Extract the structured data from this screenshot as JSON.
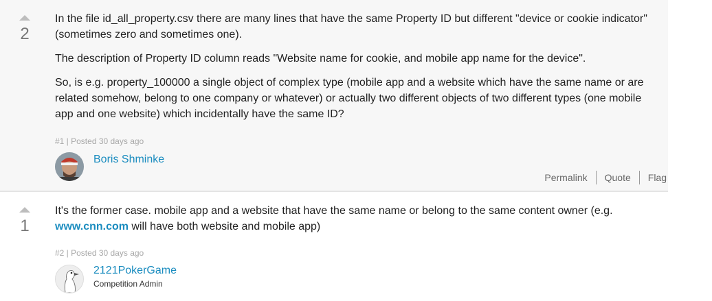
{
  "posts": [
    {
      "votes": "2",
      "paragraphs": [
        "In the file id_all_property.csv there are many lines that have the same Property ID but different \"device or cookie indicator\" (sometimes zero and sometimes one).",
        "The description of Property ID column reads \"Website name for cookie, and mobile app name for the device\".",
        "So, is e.g. property_100000 a single object of complex type (mobile app and a website which have the same name or are related somehow, belong to one company or whatever) or actually two different objects of two different types (one mobile app and one website) which incidentally have the same ID?"
      ],
      "meta": "#1 | Posted 30 days ago",
      "author": "Boris Shminke",
      "actions": {
        "permalink": "Permalink",
        "quote": "Quote",
        "flag": "Flag"
      }
    },
    {
      "votes": "1",
      "text_before_link": "It's the former case. mobile app and a website that have the same name or belong to the same content owner (e.g. ",
      "link": "www.cnn.com",
      "text_after_link": " will have both website and mobile app)",
      "meta": "#2 | Posted 30 days ago",
      "author": "2121PokerGame",
      "role": "Competition Admin"
    }
  ]
}
